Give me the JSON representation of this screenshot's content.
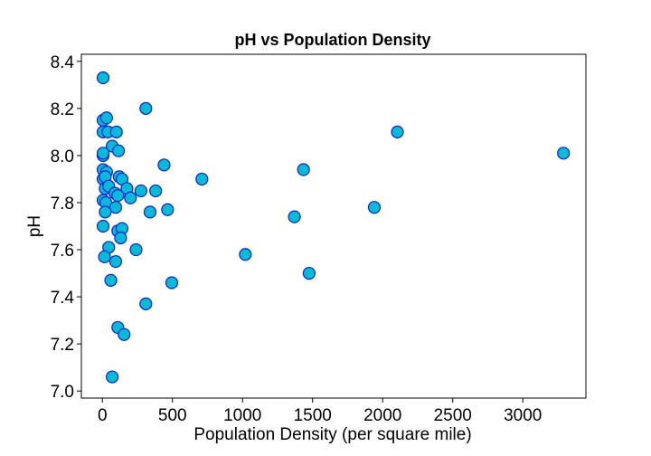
{
  "chart_data": {
    "type": "scatter",
    "title": "pH vs Population Density",
    "xlabel": "Population Density (per square mile)",
    "ylabel": "pH",
    "xlim": [
      -150,
      3450
    ],
    "ylim": [
      6.97,
      8.43
    ],
    "xticks": [
      0,
      500,
      1000,
      1500,
      2000,
      2500,
      3000
    ],
    "yticks": [
      7.0,
      7.2,
      7.4,
      7.6,
      7.8,
      8.0,
      8.2,
      8.4
    ],
    "grid": false,
    "marker": {
      "fill": "#00bcd4",
      "edge": "#1a1adc"
    },
    "series": [
      {
        "points": [
          [
            5,
            8.33
          ],
          [
            5,
            8.15
          ],
          [
            30,
            8.16
          ],
          [
            5,
            8.1
          ],
          [
            40,
            8.1
          ],
          [
            100,
            8.1
          ],
          [
            310,
            8.2
          ],
          [
            70,
            8.04
          ],
          [
            115,
            8.02
          ],
          [
            5,
            8.0
          ],
          [
            5,
            8.01
          ],
          [
            5,
            7.94
          ],
          [
            30,
            7.93
          ],
          [
            5,
            7.9
          ],
          [
            20,
            7.91
          ],
          [
            120,
            7.91
          ],
          [
            140,
            7.9
          ],
          [
            20,
            7.86
          ],
          [
            45,
            7.87
          ],
          [
            175,
            7.86
          ],
          [
            275,
            7.85
          ],
          [
            380,
            7.85
          ],
          [
            440,
            7.96
          ],
          [
            5,
            7.81
          ],
          [
            25,
            7.8
          ],
          [
            90,
            7.84
          ],
          [
            110,
            7.83
          ],
          [
            200,
            7.82
          ],
          [
            95,
            7.78
          ],
          [
            20,
            7.76
          ],
          [
            340,
            7.76
          ],
          [
            465,
            7.77
          ],
          [
            710,
            7.9
          ],
          [
            5,
            7.7
          ],
          [
            110,
            7.68
          ],
          [
            140,
            7.69
          ],
          [
            130,
            7.65
          ],
          [
            45,
            7.61
          ],
          [
            240,
            7.6
          ],
          [
            15,
            7.57
          ],
          [
            95,
            7.55
          ],
          [
            60,
            7.47
          ],
          [
            495,
            7.46
          ],
          [
            310,
            7.37
          ],
          [
            110,
            7.27
          ],
          [
            155,
            7.24
          ],
          [
            70,
            7.06
          ],
          [
            1020,
            7.58
          ],
          [
            1370,
            7.74
          ],
          [
            1435,
            7.94
          ],
          [
            1475,
            7.5
          ],
          [
            1940,
            7.78
          ],
          [
            2105,
            8.1
          ],
          [
            3290,
            8.01
          ]
        ]
      }
    ]
  }
}
